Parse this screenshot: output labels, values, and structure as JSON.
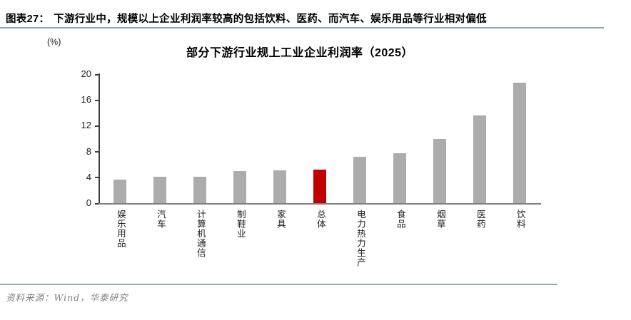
{
  "figure": {
    "label": "图表27：",
    "caption": "下游行业中，规模以上企业利润率较高的包括饮料、医药、而汽车、娱乐用品等行业相对偏低"
  },
  "chart_data": {
    "type": "bar",
    "title": "部分下游行业规上工业企业利润率（2025）",
    "unit_label": "(%)",
    "categories": [
      "娱乐用品",
      "汽车",
      "计算机通信",
      "制鞋业",
      "家具",
      "总体",
      "电力热力生产",
      "食品",
      "烟草",
      "医药",
      "饮料"
    ],
    "values": [
      3.7,
      4.1,
      4.1,
      5.0,
      5.1,
      5.2,
      7.2,
      7.7,
      10.0,
      13.6,
      18.7
    ],
    "highlight_index": 5,
    "bar_color": "#acacac",
    "highlight_color": "#c00000",
    "xlabel": "",
    "ylabel": "",
    "ylim": [
      0,
      20
    ],
    "yticks": [
      0,
      4,
      8,
      12,
      16,
      20
    ],
    "grid": false,
    "legend_position": "none"
  },
  "footer": {
    "source": "资料来源：Wind，华泰研究"
  }
}
